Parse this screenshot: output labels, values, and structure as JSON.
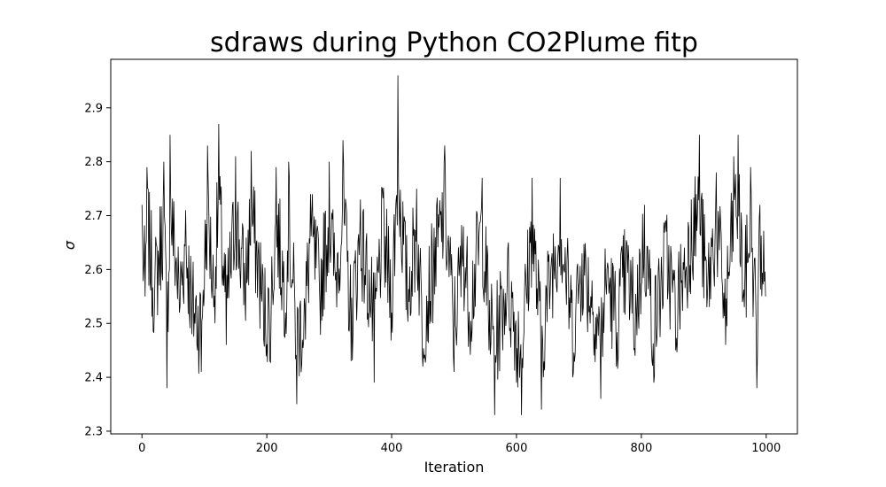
{
  "chart_data": {
    "type": "line",
    "title": "sdraws during Python CO2Plume fitp",
    "xlabel": "Iteration",
    "ylabel": "σ",
    "xlim": [
      -50,
      1050
    ],
    "ylim": [
      2.295,
      2.99
    ],
    "xticks": [
      0,
      200,
      400,
      600,
      800,
      1000
    ],
    "yticks": [
      2.3,
      2.4,
      2.5,
      2.6,
      2.7,
      2.8,
      2.9
    ],
    "grid": false,
    "legend": "none",
    "series": [
      {
        "color": "#000000",
        "x_start": 0,
        "x_end": 999,
        "n_points": 1000,
        "summary": {
          "mean": 2.585,
          "min": 2.33,
          "max": 2.96
        },
        "key_points": [
          {
            "x": 0,
            "y": 2.72
          },
          {
            "x": 5,
            "y": 2.55
          },
          {
            "x": 8,
            "y": 2.79
          },
          {
            "x": 20,
            "y": 2.53
          },
          {
            "x": 35,
            "y": 2.8
          },
          {
            "x": 40,
            "y": 2.38
          },
          {
            "x": 45,
            "y": 2.85
          },
          {
            "x": 60,
            "y": 2.52
          },
          {
            "x": 70,
            "y": 2.71
          },
          {
            "x": 80,
            "y": 2.48
          },
          {
            "x": 95,
            "y": 2.41
          },
          {
            "x": 105,
            "y": 2.83
          },
          {
            "x": 115,
            "y": 2.53
          },
          {
            "x": 123,
            "y": 2.87
          },
          {
            "x": 135,
            "y": 2.46
          },
          {
            "x": 150,
            "y": 2.81
          },
          {
            "x": 165,
            "y": 2.55
          },
          {
            "x": 175,
            "y": 2.82
          },
          {
            "x": 195,
            "y": 2.47
          },
          {
            "x": 205,
            "y": 2.43
          },
          {
            "x": 215,
            "y": 2.79
          },
          {
            "x": 230,
            "y": 2.52
          },
          {
            "x": 235,
            "y": 2.8
          },
          {
            "x": 248,
            "y": 2.35
          },
          {
            "x": 262,
            "y": 2.47
          },
          {
            "x": 270,
            "y": 2.74
          },
          {
            "x": 285,
            "y": 2.54
          },
          {
            "x": 300,
            "y": 2.8
          },
          {
            "x": 310,
            "y": 2.58
          },
          {
            "x": 322,
            "y": 2.84
          },
          {
            "x": 335,
            "y": 2.43
          },
          {
            "x": 350,
            "y": 2.73
          },
          {
            "x": 365,
            "y": 2.53
          },
          {
            "x": 372,
            "y": 2.39
          },
          {
            "x": 385,
            "y": 2.75
          },
          {
            "x": 400,
            "y": 2.52
          },
          {
            "x": 410,
            "y": 2.96
          },
          {
            "x": 425,
            "y": 2.53
          },
          {
            "x": 440,
            "y": 2.75
          },
          {
            "x": 450,
            "y": 2.42
          },
          {
            "x": 470,
            "y": 2.66
          },
          {
            "x": 485,
            "y": 2.83
          },
          {
            "x": 500,
            "y": 2.41
          },
          {
            "x": 515,
            "y": 2.68
          },
          {
            "x": 525,
            "y": 2.48
          },
          {
            "x": 545,
            "y": 2.77
          },
          {
            "x": 556,
            "y": 2.45
          },
          {
            "x": 565,
            "y": 2.33
          },
          {
            "x": 585,
            "y": 2.57
          },
          {
            "x": 600,
            "y": 2.39
          },
          {
            "x": 608,
            "y": 2.33
          },
          {
            "x": 625,
            "y": 2.77
          },
          {
            "x": 640,
            "y": 2.34
          },
          {
            "x": 655,
            "y": 2.6
          },
          {
            "x": 670,
            "y": 2.77
          },
          {
            "x": 690,
            "y": 2.4
          },
          {
            "x": 705,
            "y": 2.63
          },
          {
            "x": 725,
            "y": 2.48
          },
          {
            "x": 735,
            "y": 2.36
          },
          {
            "x": 745,
            "y": 2.6
          },
          {
            "x": 760,
            "y": 2.42
          },
          {
            "x": 775,
            "y": 2.61
          },
          {
            "x": 790,
            "y": 2.44
          },
          {
            "x": 805,
            "y": 2.72
          },
          {
            "x": 820,
            "y": 2.39
          },
          {
            "x": 840,
            "y": 2.67
          },
          {
            "x": 855,
            "y": 2.45
          },
          {
            "x": 865,
            "y": 2.58
          },
          {
            "x": 880,
            "y": 2.73
          },
          {
            "x": 893,
            "y": 2.85
          },
          {
            "x": 905,
            "y": 2.53
          },
          {
            "x": 920,
            "y": 2.78
          },
          {
            "x": 935,
            "y": 2.46
          },
          {
            "x": 948,
            "y": 2.81
          },
          {
            "x": 955,
            "y": 2.85
          },
          {
            "x": 965,
            "y": 2.53
          },
          {
            "x": 975,
            "y": 2.79
          },
          {
            "x": 985,
            "y": 2.38
          },
          {
            "x": 990,
            "y": 2.72
          },
          {
            "x": 999,
            "y": 2.55
          }
        ]
      }
    ]
  }
}
